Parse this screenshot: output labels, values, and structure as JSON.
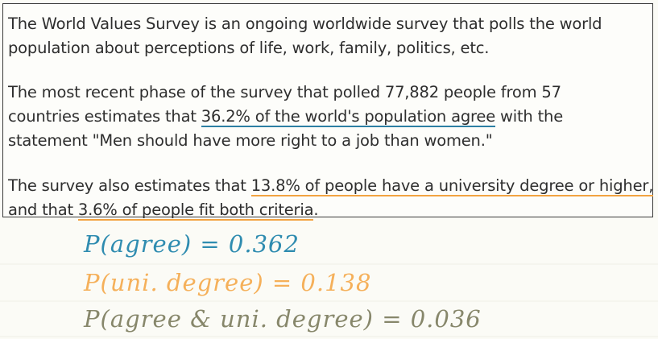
{
  "colors": {
    "blue": "#2f8cb0",
    "orange": "#f5b05a",
    "olive": "#87876b",
    "text": "#2e2e2e"
  },
  "paragraph1": {
    "line1": "The World Values Survey is an ongoing worldwide survey that polls the world",
    "line2": "population about perceptions of life, work, family, politics, etc."
  },
  "paragraph2": {
    "line1": "The most recent phase of the survey that polled 77,882  people from 57",
    "line2_pre": "countries estimates that ",
    "line2_highlight": "36.2% of the world's population agree",
    "line2_post": " with the",
    "line3": "statement \"Men should have more right to a job than women.\""
  },
  "paragraph3": {
    "line1_pre": "The survey also estimates that ",
    "line1_highlight": "13.8% of people have a university degree or higher,",
    "line2_pre": "and that ",
    "line2_highlight": "3.6% of people fit both criteria",
    "line2_post": "."
  },
  "formulas": {
    "f1": "P(agree) = 0.362",
    "f2": "P(uni. degree) = 0.138",
    "f3": "P(agree & uni. degree) = 0.036"
  }
}
